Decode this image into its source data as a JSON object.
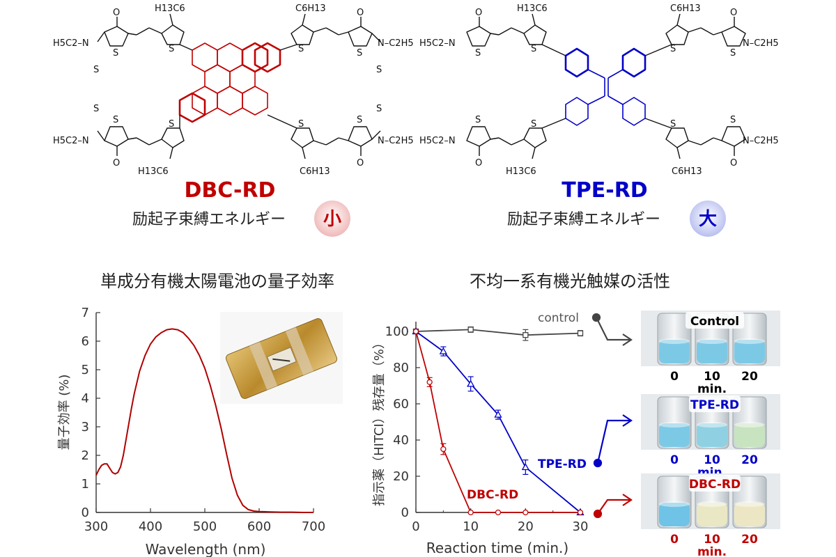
{
  "molecules": {
    "left": {
      "name": "DBC-RD",
      "color": "#c00000",
      "subtitle": "励起子束縛エネルギー",
      "badge": "小",
      "badge_fill": "#f3c9c9",
      "substituents": {
        "hexyl_top": "H13C6",
        "hexyl_top_right": "C6H13",
        "hexyl_bottom": "H13C6",
        "hexyl_bottom_right": "C6H13",
        "ethyl_left": "H5C2–N",
        "ethyl_right": "N–C2H5",
        "S": "S",
        "O": "O"
      }
    },
    "right": {
      "name": "TPE-RD",
      "color": "#0000c8",
      "subtitle": "励起子束縛エネルギー",
      "badge": "大",
      "badge_fill": "#c9cdf3",
      "substituents": {
        "hexyl_top": "H13C6",
        "hexyl_top_right": "C6H13",
        "hexyl_bottom": "H13C6",
        "hexyl_bottom_right": "C6H13",
        "ethyl_left": "H5C2–N",
        "ethyl_right": "N–C2H5",
        "S": "S",
        "O": "O"
      }
    }
  },
  "panel_titles": {
    "left": "単成分有機太陽電池の量子効率",
    "right": "不均一系有機光触媒の活性"
  },
  "chart_data": [
    {
      "type": "line",
      "title": "単成分有機太陽電池の量子効率",
      "xlabel": "Wavelength (nm)",
      "ylabel": "量子効率 (%)",
      "xlim": [
        300,
        700
      ],
      "ylim": [
        0,
        7
      ],
      "xticks": [
        300,
        400,
        500,
        600,
        700
      ],
      "yticks": [
        0,
        1,
        2,
        3,
        4,
        5,
        6,
        7
      ],
      "series": [
        {
          "color": "#b00000",
          "x": [
            300,
            305,
            310,
            315,
            320,
            325,
            330,
            335,
            340,
            345,
            350,
            355,
            360,
            365,
            370,
            380,
            390,
            400,
            410,
            420,
            430,
            440,
            450,
            460,
            470,
            480,
            490,
            500,
            510,
            520,
            530,
            540,
            550,
            560,
            570,
            580,
            590,
            600,
            620,
            640,
            660,
            680,
            700
          ],
          "y": [
            1.3,
            1.5,
            1.65,
            1.7,
            1.7,
            1.55,
            1.4,
            1.35,
            1.4,
            1.6,
            2.0,
            2.55,
            3.1,
            3.65,
            4.15,
            4.95,
            5.5,
            5.9,
            6.15,
            6.3,
            6.4,
            6.43,
            6.4,
            6.3,
            6.1,
            5.85,
            5.5,
            5.05,
            4.45,
            3.75,
            2.95,
            2.05,
            1.2,
            0.6,
            0.25,
            0.1,
            0.05,
            0.03,
            0.02,
            0.01,
            0.01,
            0.0,
            0.0
          ]
        }
      ]
    },
    {
      "type": "line",
      "title": "不均一系有機光触媒の活性",
      "xlabel": "Reaction time (min.)",
      "ylabel": "指示薬（HITCI）残存量（%）",
      "xlim": [
        0,
        30
      ],
      "ylim": [
        0,
        100
      ],
      "xticks": [
        0,
        10,
        20,
        30
      ],
      "yticks": [
        0,
        20,
        40,
        60,
        80,
        100
      ],
      "series": [
        {
          "name": "control",
          "color": "#444444",
          "marker": "square",
          "x": [
            0,
            10,
            20,
            30
          ],
          "y": [
            100,
            101,
            98,
            99
          ],
          "err": [
            0,
            1.5,
            3,
            1.5
          ]
        },
        {
          "name": "TPE-RD",
          "color": "#0000c8",
          "marker": "triangle",
          "x": [
            0,
            5,
            10,
            15,
            20,
            30
          ],
          "y": [
            100,
            89,
            71,
            54,
            25,
            0
          ],
          "err": [
            0,
            2.5,
            4,
            2.5,
            4,
            0
          ]
        },
        {
          "name": "DBC-RD",
          "color": "#c00000",
          "marker": "circle",
          "x": [
            0,
            2.5,
            5,
            10,
            15,
            20,
            30
          ],
          "y": [
            100,
            72,
            35,
            0,
            0,
            0,
            0
          ],
          "err": [
            0,
            2.5,
            3,
            0,
            0,
            0,
            0
          ]
        }
      ]
    }
  ],
  "vials": {
    "rows": [
      {
        "label": "Control",
        "label_color": "#000000",
        "label_bg": "#ffffff",
        "time_color": "#000000",
        "times": [
          "0",
          "10",
          "20"
        ],
        "unit": "min.",
        "liquid_colors": [
          "#7cc9e6",
          "#7cc9e6",
          "#7cc9e6"
        ]
      },
      {
        "label": "TPE-RD",
        "label_color": "#0000c8",
        "label_bg": "#ffffff",
        "time_color": "#0000c8",
        "times": [
          "0",
          "10",
          "20"
        ],
        "unit": "min.",
        "liquid_colors": [
          "#7cc9e6",
          "#8fd1e3",
          "#c8e3c0"
        ]
      },
      {
        "label": "DBC-RD",
        "label_color": "#c00000",
        "label_bg": "#ffffff",
        "time_color": "#c00000",
        "times": [
          "0",
          "10",
          "20"
        ],
        "unit": "min.",
        "liquid_colors": [
          "#6fc3e6",
          "#e9e7c4",
          "#ece6c4"
        ]
      }
    ]
  },
  "inset_photo": {
    "description_hidden": true,
    "gold": "#c8a040"
  }
}
